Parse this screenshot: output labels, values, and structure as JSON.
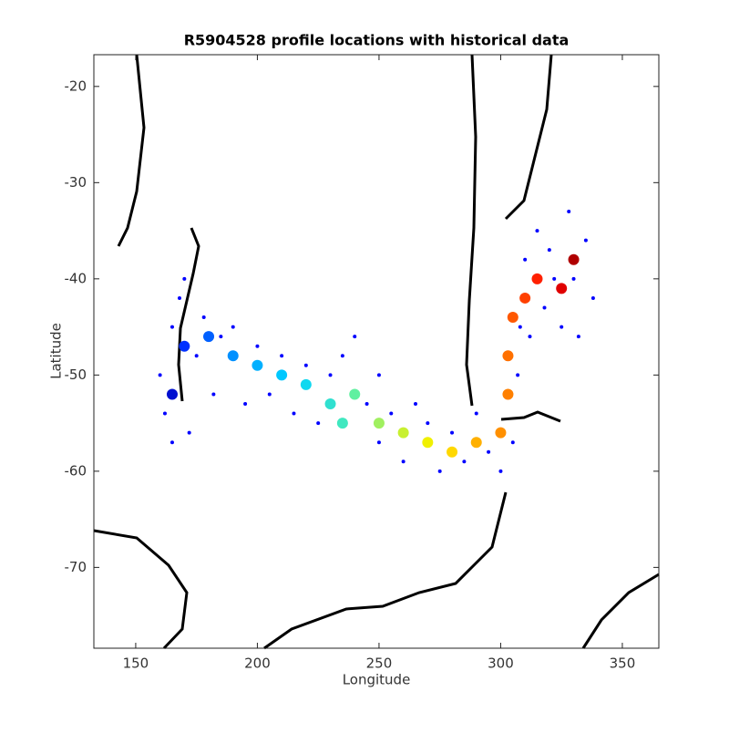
{
  "chart_data": {
    "type": "scatter",
    "title": "R5904528 profile locations with historical data",
    "xlabel": "Longitude",
    "ylabel": "Latitude",
    "xlim": [
      132.8,
      365
    ],
    "ylim": [
      -78.4,
      -16.7
    ],
    "xticks": [
      150,
      200,
      250,
      300,
      350
    ],
    "yticks": [
      -20,
      -30,
      -40,
      -50,
      -60,
      -70
    ],
    "grid": false,
    "series": [
      {
        "color": "#0000ff",
        "size": 2,
        "x": [
          160,
          162,
          165,
          168,
          172,
          175,
          178,
          182,
          185,
          190,
          195,
          200,
          205,
          210,
          215,
          220,
          225,
          230,
          235,
          240,
          245,
          250,
          255,
          260,
          265,
          270,
          275,
          280,
          285,
          290,
          295,
          300,
          305,
          307,
          308,
          310,
          312,
          315,
          318,
          320,
          325,
          328,
          330,
          335,
          338,
          332,
          322,
          165,
          170,
          250
        ],
        "values": [
          -50,
          -54,
          -45,
          -42,
          -56,
          -48,
          -44,
          -52,
          -46,
          -45,
          -53,
          -47,
          -52,
          -48,
          -54,
          -49,
          -55,
          -50,
          -48,
          -46,
          -53,
          -57,
          -54,
          -59,
          -53,
          -55,
          -60,
          -56,
          -59,
          -54,
          -58,
          -60,
          -57,
          -50,
          -45,
          -38,
          -46,
          -35,
          -43,
          -37,
          -45,
          -33,
          -40,
          -36,
          -42,
          -46,
          -40,
          -57,
          -40,
          -50
        ]
      },
      {
        "size": 6,
        "x": [
          165,
          170,
          180,
          190,
          200,
          210,
          220,
          230,
          240,
          235,
          250,
          260,
          270,
          280,
          290,
          300,
          303,
          303,
          305,
          310,
          315,
          325,
          330
        ],
        "values": [
          -52,
          -47,
          -46,
          -48,
          -49,
          -50,
          -51,
          -53,
          -52,
          -55,
          -55,
          -56,
          -57,
          -58,
          -57,
          -56,
          -52,
          -48,
          -44,
          -42,
          -40,
          -41,
          -38
        ],
        "colors": [
          "#0010d0",
          "#0030ff",
          "#0060ff",
          "#0090ff",
          "#00b0ff",
          "#00c8ff",
          "#10d8f0",
          "#30e0d0",
          "#60f0a0",
          "#40e8c0",
          "#a0f060",
          "#c8f030",
          "#f0f000",
          "#ffd800",
          "#ffb000",
          "#ff9000",
          "#ff8000",
          "#ff7000",
          "#ff5800",
          "#ff4000",
          "#ff2000",
          "#e00000",
          "#b00000"
        ]
      }
    ]
  }
}
